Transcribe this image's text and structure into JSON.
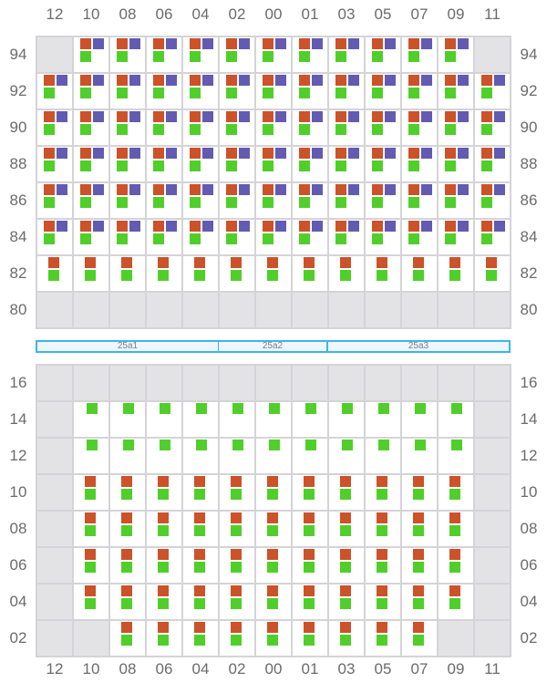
{
  "columns": [
    "12",
    "10",
    "08",
    "06",
    "04",
    "02",
    "00",
    "01",
    "03",
    "05",
    "07",
    "09",
    "11"
  ],
  "colors": {
    "orange": "#cc5229",
    "purple": "#635bb1",
    "green": "#50cf2a",
    "empty": "#e3e3e6",
    "band": "#3bb5f0"
  },
  "legend_codes": {
    "e": "empty",
    "opg": "orange+purple+green",
    "og": "orange+green",
    "g": "green"
  },
  "top_grid": {
    "rows": [
      {
        "label": "94",
        "cells": [
          "e",
          "opg",
          "opg",
          "opg",
          "opg",
          "opg",
          "opg",
          "opg",
          "opg",
          "opg",
          "opg",
          "opg",
          "e"
        ]
      },
      {
        "label": "92",
        "cells": [
          "opg",
          "opg",
          "opg",
          "opg",
          "opg",
          "opg",
          "opg",
          "opg",
          "opg",
          "opg",
          "opg",
          "opg",
          "opg"
        ]
      },
      {
        "label": "90",
        "cells": [
          "opg",
          "opg",
          "opg",
          "opg",
          "opg",
          "opg",
          "opg",
          "opg",
          "opg",
          "opg",
          "opg",
          "opg",
          "opg"
        ]
      },
      {
        "label": "88",
        "cells": [
          "opg",
          "opg",
          "opg",
          "opg",
          "opg",
          "opg",
          "opg",
          "opg",
          "opg",
          "opg",
          "opg",
          "opg",
          "opg"
        ]
      },
      {
        "label": "86",
        "cells": [
          "opg",
          "opg",
          "opg",
          "opg",
          "opg",
          "opg",
          "opg",
          "opg",
          "opg",
          "opg",
          "opg",
          "opg",
          "opg"
        ]
      },
      {
        "label": "84",
        "cells": [
          "opg",
          "opg",
          "opg",
          "opg",
          "opg",
          "opg",
          "opg",
          "opg",
          "opg",
          "opg",
          "opg",
          "opg",
          "opg"
        ]
      },
      {
        "label": "82",
        "cells": [
          "og",
          "og",
          "og",
          "og",
          "og",
          "og",
          "og",
          "og",
          "og",
          "og",
          "og",
          "og",
          "og"
        ]
      },
      {
        "label": "80",
        "cells": [
          "e",
          "e",
          "e",
          "e",
          "e",
          "e",
          "e",
          "e",
          "e",
          "e",
          "e",
          "e",
          "e"
        ]
      }
    ]
  },
  "bands": [
    {
      "label": "25a1",
      "span": 5
    },
    {
      "label": "25a2",
      "span": 3
    },
    {
      "label": "25a3",
      "span": 5
    }
  ],
  "bottom_grid": {
    "rows": [
      {
        "label": "16",
        "cells": [
          "e",
          "e",
          "e",
          "e",
          "e",
          "e",
          "e",
          "e",
          "e",
          "e",
          "e",
          "e",
          "e"
        ]
      },
      {
        "label": "14",
        "cells": [
          "e",
          "g",
          "g",
          "g",
          "g",
          "g",
          "g",
          "g",
          "g",
          "g",
          "g",
          "g",
          "e"
        ]
      },
      {
        "label": "12",
        "cells": [
          "e",
          "g",
          "g",
          "g",
          "g",
          "g",
          "g",
          "g",
          "g",
          "g",
          "g",
          "g",
          "e"
        ]
      },
      {
        "label": "10",
        "cells": [
          "e",
          "og",
          "og",
          "og",
          "og",
          "og",
          "og",
          "og",
          "og",
          "og",
          "og",
          "og",
          "e"
        ]
      },
      {
        "label": "08",
        "cells": [
          "e",
          "og",
          "og",
          "og",
          "og",
          "og",
          "og",
          "og",
          "og",
          "og",
          "og",
          "og",
          "e"
        ]
      },
      {
        "label": "06",
        "cells": [
          "e",
          "og",
          "og",
          "og",
          "og",
          "og",
          "og",
          "og",
          "og",
          "og",
          "og",
          "og",
          "e"
        ]
      },
      {
        "label": "04",
        "cells": [
          "e",
          "og",
          "og",
          "og",
          "og",
          "og",
          "og",
          "og",
          "og",
          "og",
          "og",
          "og",
          "e"
        ]
      },
      {
        "label": "02",
        "cells": [
          "e",
          "e",
          "og",
          "og",
          "og",
          "og",
          "og",
          "og",
          "og",
          "og",
          "og",
          "e",
          "e"
        ]
      }
    ]
  }
}
